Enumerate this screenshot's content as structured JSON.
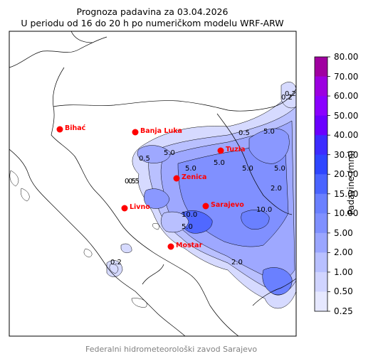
{
  "title_line1": "Prognoza padavina za 03.04.2026",
  "title_line2": "U periodu od 16 do 20 h po numeričkom modelu WRF-ARW",
  "credit": "Federalni hidrometeorološki zavod Sarajevo",
  "colorbar": {
    "label": "Padavine (mm)",
    "ticks": [
      "80.00",
      "70.00",
      "60.00",
      "50.00",
      "40.00",
      "30.00",
      "20.00",
      "15.00",
      "10.00",
      "5.00",
      "2.00",
      "1.00",
      "0.50",
      "0.25"
    ],
    "colors": [
      "#a000a0",
      "#9c00e0",
      "#8a00ff",
      "#6a00ff",
      "#3c2cff",
      "#2e46ff",
      "#4a64ff",
      "#6a80ff",
      "#7f90ff",
      "#9aa6ff",
      "#b8c0ff",
      "#d0d4ff",
      "#e6e8ff"
    ]
  },
  "cities": [
    {
      "name": "Bihać"
    },
    {
      "name": "Banja Luka"
    },
    {
      "name": "Tuzla"
    },
    {
      "name": "Zenica"
    },
    {
      "name": "Livno"
    },
    {
      "name": "Sarajevo"
    },
    {
      "name": "Mostar"
    }
  ],
  "contour_labels": [
    "0.2",
    "0.5",
    "5.0",
    "5.0",
    "5.0",
    "5.0",
    "5.0",
    "5.0",
    "10.0",
    "10.0",
    "2.0",
    "2.0",
    "0.5",
    "0.5",
    "5.0",
    "0.2",
    "0.5",
    "0.2"
  ],
  "city_color": "#ff0000"
}
